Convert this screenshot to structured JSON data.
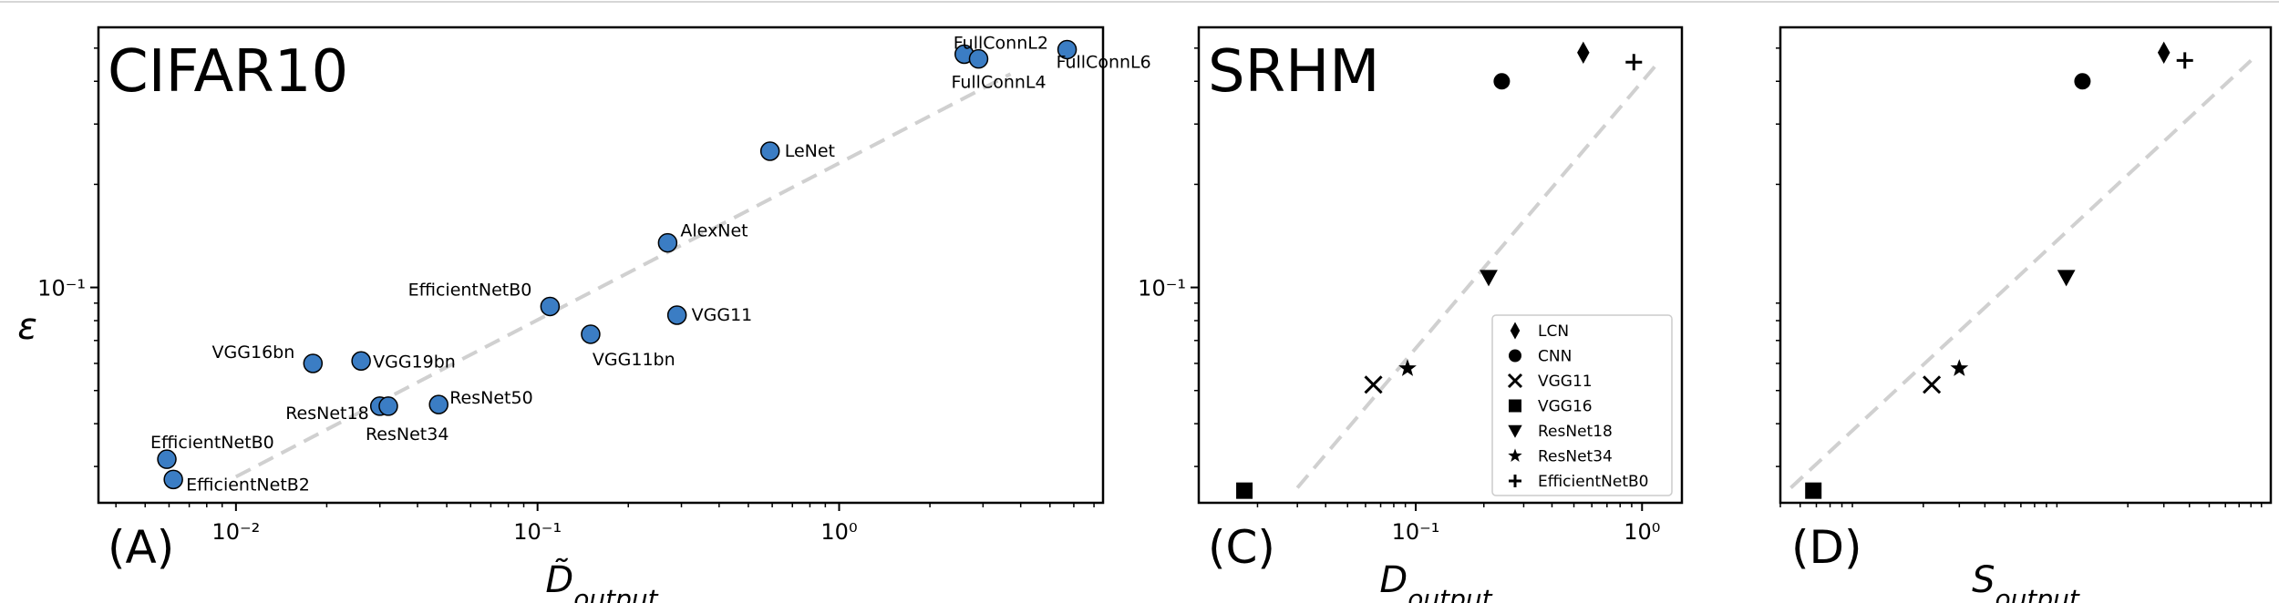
{
  "chart_data": [
    {
      "type": "scatter",
      "panel_letter": "(A)",
      "title": "CIFAR10",
      "xlabel": "D̃output",
      "ylabel": "ε",
      "xscale": "log",
      "yscale": "log",
      "xlim": [
        0.0035,
        7.5
      ],
      "ylim": [
        0.0235,
        0.575
      ],
      "xticks": [
        {
          "value": 0.01,
          "label": "10⁻²"
        },
        {
          "value": 0.1,
          "label": "10⁻¹"
        },
        {
          "value": 1,
          "label": "10⁰"
        }
      ],
      "yticks": [
        {
          "value": 0.1,
          "label": "10⁻¹"
        }
      ],
      "marker_color": "#3b7dc4",
      "trend_line": {
        "x": [
          0.01,
          3.7
        ],
        "y": [
          0.028,
          0.42
        ]
      },
      "points": [
        {
          "name": "FullConnL2",
          "x": 2.6,
          "y": 0.48
        },
        {
          "name": "FullConnL6",
          "x": 5.7,
          "y": 0.495
        },
        {
          "name": "FullConnL4",
          "x": 2.9,
          "y": 0.465
        },
        {
          "name": "LeNet",
          "x": 0.59,
          "y": 0.25
        },
        {
          "name": "AlexNet",
          "x": 0.27,
          "y": 0.135
        },
        {
          "name": "EfficientNetB0",
          "x": 0.11,
          "y": 0.088
        },
        {
          "name": "VGG11",
          "x": 0.29,
          "y": 0.083
        },
        {
          "name": "VGG11bn",
          "x": 0.15,
          "y": 0.073
        },
        {
          "name": "VGG16bn",
          "x": 0.018,
          "y": 0.06
        },
        {
          "name": "VGG19bn",
          "x": 0.026,
          "y": 0.061
        },
        {
          "name": "ResNet50",
          "x": 0.047,
          "y": 0.0455
        },
        {
          "name": "ResNet18",
          "x": 0.03,
          "y": 0.045
        },
        {
          "name": "ResNet34",
          "x": 0.032,
          "y": 0.045
        },
        {
          "name": "EfficientNetB0",
          "x": 0.0059,
          "y": 0.0315
        },
        {
          "name": "EfficientNetB2",
          "x": 0.0062,
          "y": 0.0275
        }
      ]
    },
    {
      "type": "scatter",
      "panel_letter": "(C)",
      "title": "SRHM",
      "xlabel": "Doutput",
      "ylabel": "",
      "xscale": "log",
      "yscale": "log",
      "xlim": [
        0.011,
        1.5
      ],
      "ylim": [
        0.0235,
        0.575
      ],
      "xticks": [
        {
          "value": 0.1,
          "label": "10⁻¹"
        },
        {
          "value": 1,
          "label": "10⁰"
        }
      ],
      "yticks": [
        {
          "value": 0.1,
          "label": "10⁻¹"
        }
      ],
      "trend_line": {
        "x": [
          0.03,
          1.2
        ],
        "y": [
          0.026,
          0.46
        ]
      },
      "points": [
        {
          "name": "LCN",
          "marker": "diamond",
          "x": 0.55,
          "y": 0.485
        },
        {
          "name": "CNN",
          "marker": "circle",
          "x": 0.24,
          "y": 0.4
        },
        {
          "name": "EfficientNetB0",
          "marker": "plus",
          "x": 0.92,
          "y": 0.455
        },
        {
          "name": "ResNet18",
          "marker": "triangle-down",
          "x": 0.21,
          "y": 0.107
        },
        {
          "name": "ResNet34",
          "marker": "star",
          "x": 0.092,
          "y": 0.058
        },
        {
          "name": "VGG11",
          "marker": "x",
          "x": 0.065,
          "y": 0.052
        },
        {
          "name": "VGG16",
          "marker": "square",
          "x": 0.0175,
          "y": 0.0255
        }
      ],
      "legend": {
        "placement": "lower-right",
        "entries": [
          {
            "label": "LCN",
            "marker": "diamond"
          },
          {
            "label": "CNN",
            "marker": "circle"
          },
          {
            "label": "VGG11",
            "marker": "x"
          },
          {
            "label": "VGG16",
            "marker": "square"
          },
          {
            "label": "ResNet18",
            "marker": "triangle-down"
          },
          {
            "label": "ResNet34",
            "marker": "star"
          },
          {
            "label": "EfficientNetB0",
            "marker": "plus"
          }
        ]
      }
    },
    {
      "type": "scatter",
      "panel_letter": "(D)",
      "title": "",
      "xlabel": "Soutput",
      "ylabel": "",
      "xscale": "log",
      "yscale": "log",
      "xlim": [
        0.004,
        1.0
      ],
      "ylim": [
        0.0235,
        0.575
      ],
      "xticks": [],
      "yticks": [],
      "trend_line": {
        "x": [
          0.0045,
          0.8
        ],
        "y": [
          0.026,
          0.46
        ]
      },
      "points": [
        {
          "name": "LCN",
          "marker": "diamond",
          "x": 0.3,
          "y": 0.485
        },
        {
          "name": "CNN",
          "marker": "circle",
          "x": 0.12,
          "y": 0.4
        },
        {
          "name": "EfficientNetB0",
          "marker": "plus",
          "x": 0.38,
          "y": 0.46
        },
        {
          "name": "ResNet18",
          "marker": "triangle-down",
          "x": 0.1,
          "y": 0.107
        },
        {
          "name": "ResNet34",
          "marker": "star",
          "x": 0.03,
          "y": 0.058
        },
        {
          "name": "VGG11",
          "marker": "x",
          "x": 0.022,
          "y": 0.052
        },
        {
          "name": "VGG16",
          "marker": "square",
          "x": 0.0058,
          "y": 0.0255
        }
      ]
    }
  ]
}
